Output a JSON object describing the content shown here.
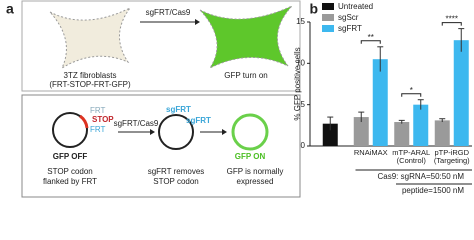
{
  "panel_a": {
    "label": "a",
    "top": {
      "treatment": "sgFRT/Cas9",
      "cell_label": [
        "3TZ fibroblasts",
        "(FRT-STOP-FRT-GFP)"
      ],
      "result": "GFP turn on"
    },
    "bottom": {
      "site_1": "FRT",
      "stop": "STOP",
      "site_2": "FRT",
      "treatment": "sgFRT/Cas9",
      "guide_1": "sgFRT",
      "guide_2": "sgFRT",
      "state_off": "GFP OFF",
      "state_on": "GFP ON",
      "captions": [
        [
          "STOP codon",
          "flanked by FRT"
        ],
        [
          "sgFRT removes",
          "STOP codon"
        ],
        [
          "GFP is normally",
          "expressed"
        ]
      ]
    }
  },
  "chart_data": {
    "type": "bar",
    "panel_label": "b",
    "ylabel": "% GFP positive cells",
    "categories": [
      null,
      "RNAiMAX",
      "mTP-ARAL\n(Control)",
      "pTP-iRGD\n(Targeting)"
    ],
    "series": [
      {
        "name": "Untreated",
        "color": "#111111",
        "values": [
          2.7,
          null,
          null,
          null
        ],
        "errors": [
          0.8,
          null,
          null,
          null
        ]
      },
      {
        "name": "sgScr",
        "color": "#9a9a9a",
        "values": [
          null,
          3.5,
          2.9,
          3.1
        ],
        "errors": [
          null,
          0.6,
          0.2,
          0.2
        ]
      },
      {
        "name": "sgFRT",
        "color": "#3db8ef",
        "values": [
          null,
          10.5,
          5.0,
          12.8
        ],
        "errors": [
          null,
          1.5,
          0.6,
          1.4
        ]
      }
    ],
    "significance": [
      null,
      "**",
      "*",
      "****"
    ],
    "notes": [
      "Cas9: sgRNA=50:50 nM",
      "peptide=1500 nM"
    ],
    "ylim": [
      0,
      15
    ],
    "yticks": [
      0,
      5,
      10,
      15
    ],
    "legend": "top-left"
  }
}
